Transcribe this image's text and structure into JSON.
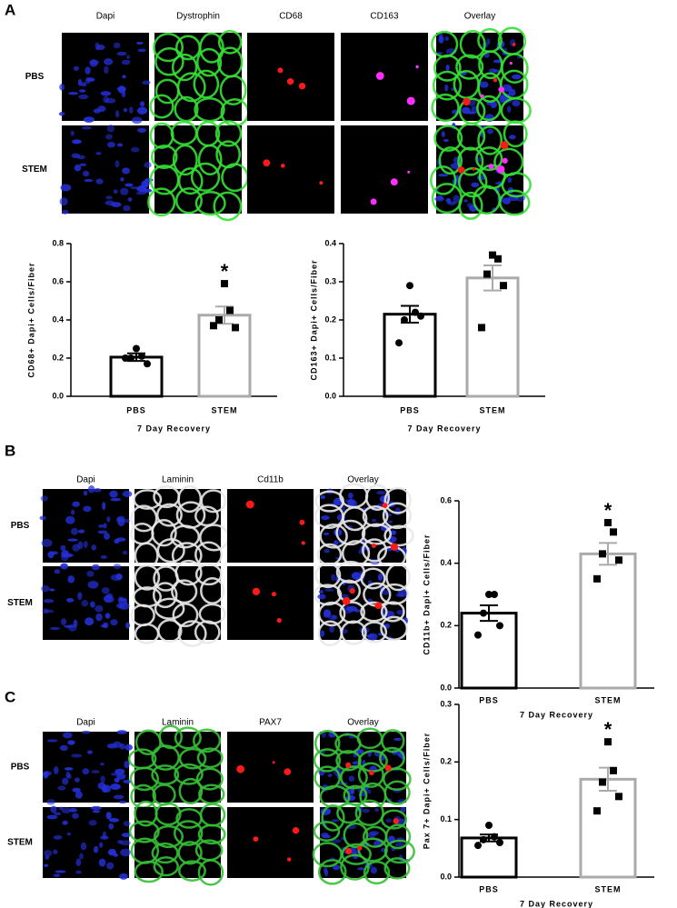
{
  "panels": [
    {
      "letter": "A",
      "columns": [
        "Dapi",
        "Dystrophin",
        "CD68",
        "CD163",
        "Overlay"
      ],
      "rows": [
        "PBS",
        "STEM"
      ],
      "channel_colors": [
        "#2430d8",
        "#35e035",
        "#ff1a1a",
        "#ff30ff"
      ]
    },
    {
      "letter": "B",
      "columns": [
        "Dapi",
        "Laminin",
        "Cd11b",
        "Overlay"
      ],
      "rows": [
        "PBS",
        "STEM"
      ],
      "channel_colors": [
        "#2430d8",
        "#e8e8e8",
        "#ff1a1a"
      ]
    },
    {
      "letter": "C",
      "columns": [
        "Dapi",
        "Laminin",
        "PAX7",
        "Overlay"
      ],
      "rows": [
        "PBS",
        "STEM"
      ],
      "channel_colors": [
        "#2430d8",
        "#35c035",
        "#ff1a1a"
      ]
    }
  ],
  "chart_data": [
    {
      "type": "bar",
      "ylabel": "CD68+ Dapi+ Cells/Fiber",
      "xlabel": "7 Day Recovery",
      "categories": [
        "PBS",
        "STEM"
      ],
      "values": [
        0.205,
        0.425
      ],
      "errors": [
        0.02,
        0.045
      ],
      "points": [
        [
          0.25,
          0.21,
          0.2,
          0.17,
          0.2
        ],
        [
          0.59,
          0.45,
          0.4,
          0.36,
          0.37
        ]
      ],
      "annotations": [
        null,
        "*"
      ],
      "colors": [
        "#000000",
        "#aaaaaa"
      ],
      "ylim": [
        0,
        0.8
      ],
      "yticks": [
        {
          "value": 0,
          "label": "0.0"
        },
        0.2,
        0.4,
        0.6,
        0.8
      ]
    },
    {
      "type": "bar",
      "ylabel": "CD163+ Dapi+ Cells/Fiber",
      "xlabel": "7 Day Recovery",
      "categories": [
        "PBS",
        "STEM"
      ],
      "values": [
        0.215,
        0.31
      ],
      "errors": [
        0.022,
        0.033
      ],
      "points": [
        [
          0.29,
          0.22,
          0.2,
          0.21,
          0.14
        ],
        [
          0.37,
          0.36,
          0.32,
          0.29,
          0.18
        ]
      ],
      "annotations": [
        null,
        null
      ],
      "colors": [
        "#000000",
        "#aaaaaa"
      ],
      "ylim": [
        0,
        0.4
      ],
      "yticks": [
        {
          "value": 0,
          "label": "0.0"
        },
        0.1,
        0.2,
        0.3,
        0.4
      ]
    },
    {
      "type": "bar",
      "ylabel": "CD11b+ Dapi+ Cells/Fiber",
      "xlabel": "7 Day Recovery",
      "categories": [
        "PBS",
        "STEM"
      ],
      "values": [
        0.24,
        0.43
      ],
      "errors": [
        0.025,
        0.035
      ],
      "points": [
        [
          0.3,
          0.3,
          0.24,
          0.2,
          0.17
        ],
        [
          0.53,
          0.5,
          0.43,
          0.41,
          0.35
        ]
      ],
      "annotations": [
        null,
        "*"
      ],
      "colors": [
        "#000000",
        "#aaaaaa"
      ],
      "ylim": [
        0,
        0.6
      ],
      "yticks": [
        {
          "value": 0,
          "label": "0.0"
        },
        0.2,
        0.4,
        0.6
      ]
    },
    {
      "type": "bar",
      "ylabel": "Pax 7+ Dapi+ Cells/Fiber",
      "xlabel": "7 Day Recovery",
      "categories": [
        "PBS",
        "STEM"
      ],
      "values": [
        0.068,
        0.17
      ],
      "errors": [
        0.006,
        0.02
      ],
      "points": [
        [
          0.09,
          0.07,
          0.065,
          0.06,
          0.055
        ],
        [
          0.235,
          0.185,
          0.165,
          0.14,
          0.115
        ]
      ],
      "annotations": [
        null,
        "*"
      ],
      "colors": [
        "#000000",
        "#aaaaaa"
      ],
      "ylim": [
        0,
        0.3
      ],
      "yticks": [
        {
          "value": 0,
          "label": "0.0"
        },
        0.1,
        0.2,
        0.3
      ]
    }
  ]
}
